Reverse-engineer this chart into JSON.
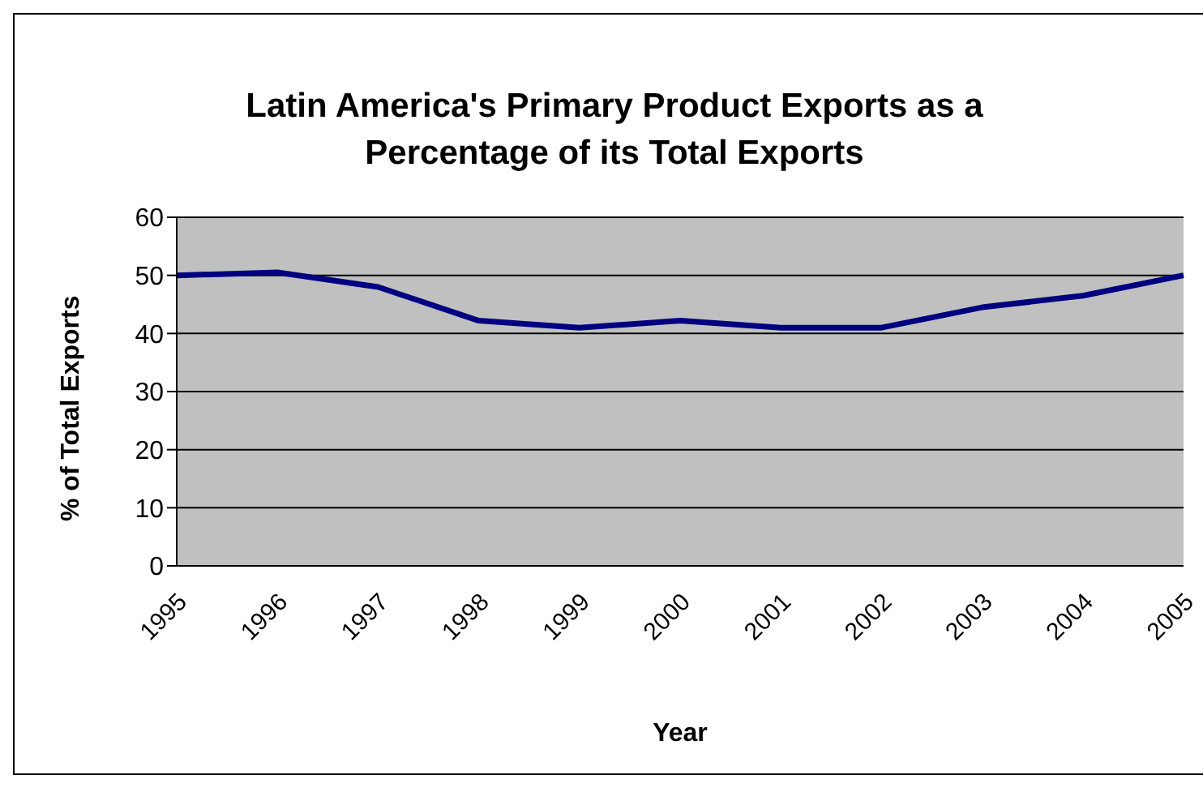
{
  "chart_data": {
    "type": "line",
    "title": "Latin America's Primary Product Exports as a Percentage of its Total Exports",
    "xlabel": "Year",
    "ylabel": "% of Total Exports",
    "categories": [
      "1995",
      "1996",
      "1997",
      "1998",
      "1999",
      "2000",
      "2001",
      "2002",
      "2003",
      "2004",
      "2005"
    ],
    "series": [
      {
        "color": "#000080",
        "values": [
          50,
          50.5,
          48,
          42.2,
          41,
          42.2,
          41,
          41,
          44.5,
          46.5,
          50
        ]
      }
    ],
    "ylim": [
      0,
      60
    ],
    "yticks": [
      0,
      10,
      20,
      30,
      40,
      50,
      60
    ],
    "grid": "y"
  }
}
